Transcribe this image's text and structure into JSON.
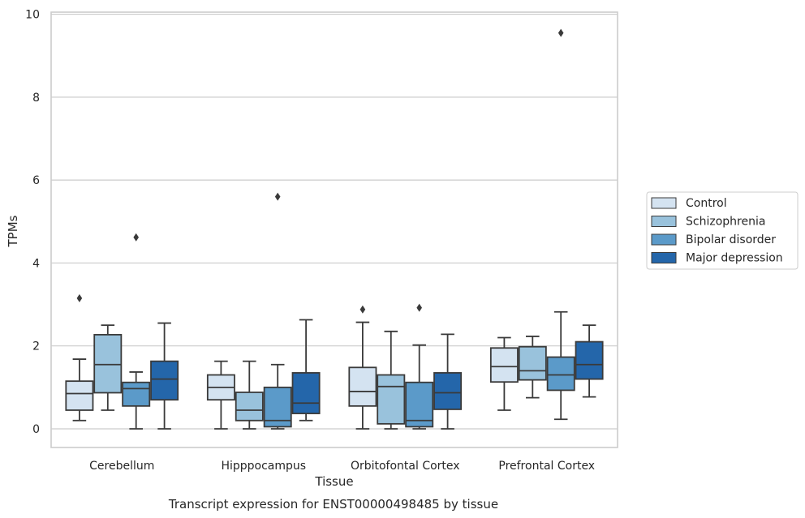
{
  "chart_data": {
    "type": "box",
    "title": "",
    "caption": "Transcript expression for ENST00000498485 by tissue",
    "xlabel": "Tissue",
    "ylabel": "TPMs",
    "ylim": [
      -0.45,
      10.05
    ],
    "yticks": [
      0,
      2,
      4,
      6,
      8,
      10
    ],
    "grid": "horizontal",
    "legend_position": "right",
    "categories": [
      "Cerebellum",
      "Hipppocampus",
      "Orbitofontal Cortex",
      "Prefrontal Cortex"
    ],
    "series": [
      {
        "name": "Control",
        "color": "#d4e3f1",
        "boxes": [
          {
            "whislo": 0.2,
            "q1": 0.45,
            "med": 0.85,
            "q3": 1.15,
            "whishi": 1.68,
            "fliers": [
              3.15
            ]
          },
          {
            "whislo": 0.0,
            "q1": 0.7,
            "med": 1.0,
            "q3": 1.3,
            "whishi": 1.63,
            "fliers": []
          },
          {
            "whislo": 0.0,
            "q1": 0.55,
            "med": 0.9,
            "q3": 1.48,
            "whishi": 2.57,
            "fliers": [
              2.88
            ]
          },
          {
            "whislo": 0.45,
            "q1": 1.13,
            "med": 1.5,
            "q3": 1.95,
            "whishi": 2.2,
            "fliers": []
          }
        ]
      },
      {
        "name": "Schizophrenia",
        "color": "#99c2dc",
        "boxes": [
          {
            "whislo": 0.45,
            "q1": 0.87,
            "med": 1.55,
            "q3": 2.27,
            "whishi": 2.5,
            "fliers": []
          },
          {
            "whislo": 0.0,
            "q1": 0.2,
            "med": 0.45,
            "q3": 0.88,
            "whishi": 1.63,
            "fliers": []
          },
          {
            "whislo": 0.0,
            "q1": 0.12,
            "med": 1.02,
            "q3": 1.3,
            "whishi": 2.35,
            "fliers": []
          },
          {
            "whislo": 0.75,
            "q1": 1.18,
            "med": 1.4,
            "q3": 1.98,
            "whishi": 2.23,
            "fliers": []
          }
        ]
      },
      {
        "name": "Bipolar disorder",
        "color": "#5b9ac9",
        "boxes": [
          {
            "whislo": 0.0,
            "q1": 0.55,
            "med": 0.97,
            "q3": 1.12,
            "whishi": 1.37,
            "fliers": [
              4.62
            ]
          },
          {
            "whislo": 0.0,
            "q1": 0.05,
            "med": 0.2,
            "q3": 1.0,
            "whishi": 1.55,
            "fliers": [
              5.6
            ]
          },
          {
            "whislo": 0.0,
            "q1": 0.05,
            "med": 0.2,
            "q3": 1.12,
            "whishi": 2.02,
            "fliers": [
              2.92
            ]
          },
          {
            "whislo": 0.23,
            "q1": 0.93,
            "med": 1.3,
            "q3": 1.73,
            "whishi": 2.82,
            "fliers": [
              9.55
            ]
          }
        ]
      },
      {
        "name": "Major depression",
        "color": "#2466aa",
        "boxes": [
          {
            "whislo": 0.0,
            "q1": 0.7,
            "med": 1.2,
            "q3": 1.63,
            "whishi": 2.55,
            "fliers": []
          },
          {
            "whislo": 0.2,
            "q1": 0.37,
            "med": 0.62,
            "q3": 1.35,
            "whishi": 2.63,
            "fliers": []
          },
          {
            "whislo": 0.0,
            "q1": 0.47,
            "med": 0.87,
            "q3": 1.35,
            "whishi": 2.28,
            "fliers": []
          },
          {
            "whislo": 0.77,
            "q1": 1.2,
            "med": 1.55,
            "q3": 2.1,
            "whishi": 2.5,
            "fliers": []
          }
        ]
      }
    ]
  }
}
